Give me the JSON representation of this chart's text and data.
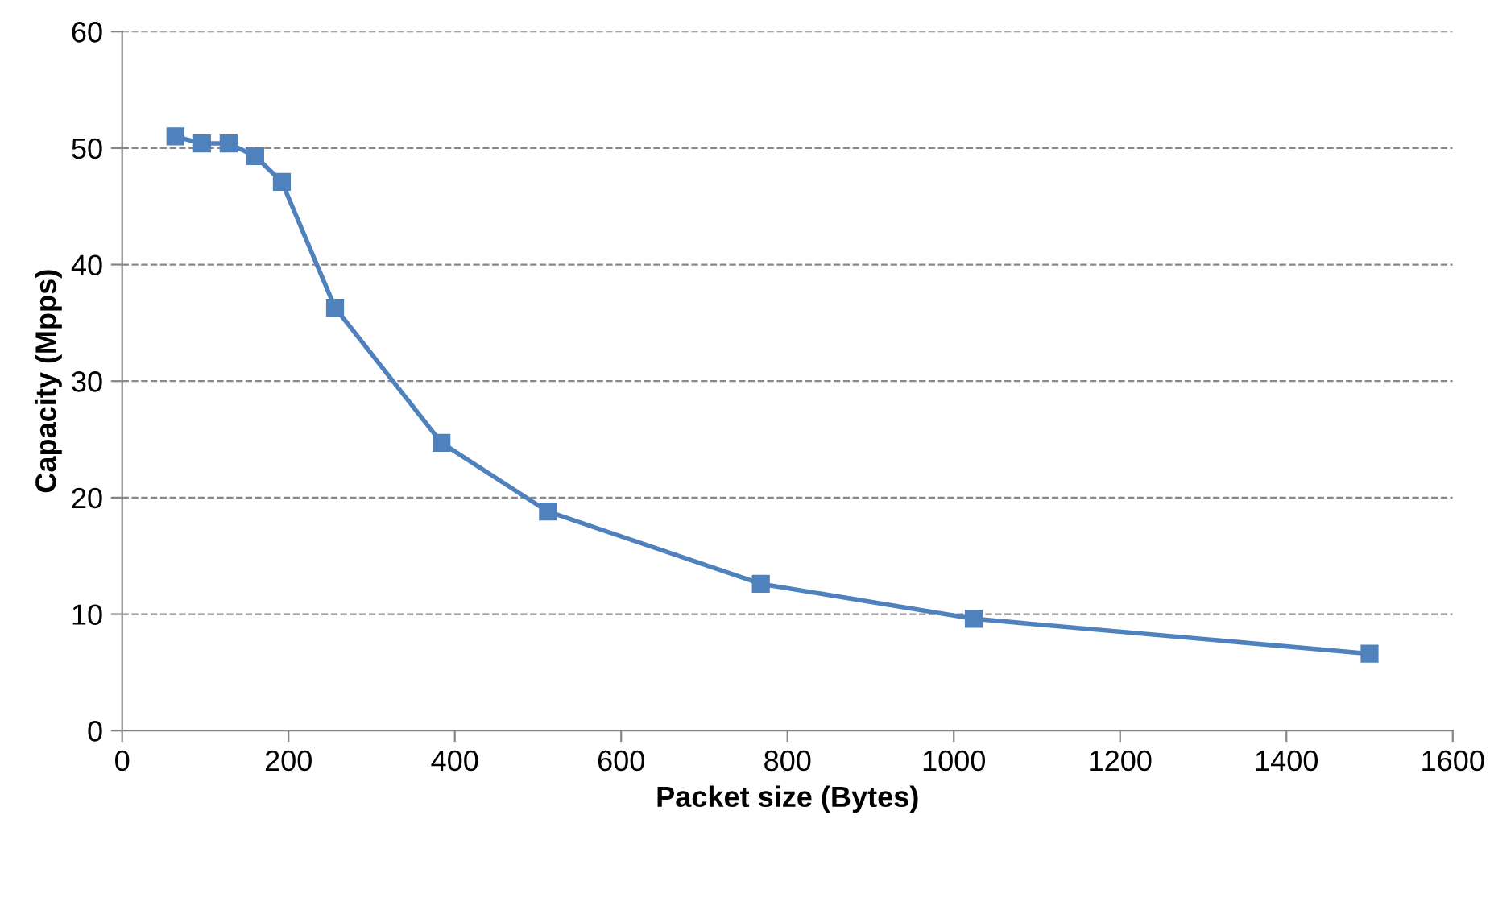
{
  "chart_data": {
    "type": "line",
    "xlabel": "Packet size (Bytes)",
    "ylabel": "Capacity (Mpps)",
    "x": [
      64,
      96,
      128,
      160,
      192,
      256,
      384,
      512,
      768,
      1024,
      1500
    ],
    "series": [
      {
        "color": "#4f81bd",
        "values": [
          51.0,
          50.4,
          50.4,
          49.3,
          47.1,
          36.3,
          24.7,
          18.8,
          12.6,
          9.6,
          6.6
        ]
      }
    ],
    "xlim": [
      0,
      1600
    ],
    "xticks": [
      0,
      200,
      400,
      600,
      800,
      1000,
      1200,
      1400,
      1600
    ],
    "ylim": [
      0,
      60
    ],
    "yticks": [
      0,
      10,
      20,
      30,
      40,
      50,
      60
    ],
    "grid": "y",
    "marker": "square",
    "line_style": "solid"
  }
}
